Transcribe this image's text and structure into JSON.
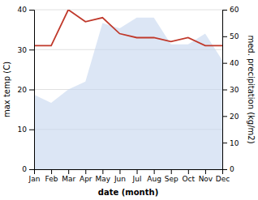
{
  "chart_data": {
    "type": "line",
    "categories": [
      "Jan",
      "Feb",
      "Mar",
      "Apr",
      "May",
      "Jun",
      "Jul",
      "Aug",
      "Sep",
      "Oct",
      "Nov",
      "Dec"
    ],
    "series": [
      {
        "type": "area",
        "axis": "y2",
        "color": "#c5d5ee",
        "values": [
          28,
          25,
          30,
          33,
          55,
          53,
          57,
          57,
          47,
          47,
          51,
          41
        ]
      },
      {
        "type": "line",
        "color": "#c0392b",
        "values": [
          31,
          31,
          40,
          37,
          38,
          34,
          33,
          33,
          32,
          33,
          31,
          31
        ]
      }
    ],
    "xlabel": "date (month)",
    "ylabel": "max temp (C)",
    "y2label": "med. precipitation (kg/m2)",
    "ylim": [
      0,
      40
    ],
    "yticks": [
      0,
      10,
      20,
      30,
      40
    ],
    "y2lim": [
      0,
      60
    ],
    "y2ticks": [
      0,
      10,
      20,
      30,
      40,
      50,
      60
    ],
    "grid": true
  }
}
